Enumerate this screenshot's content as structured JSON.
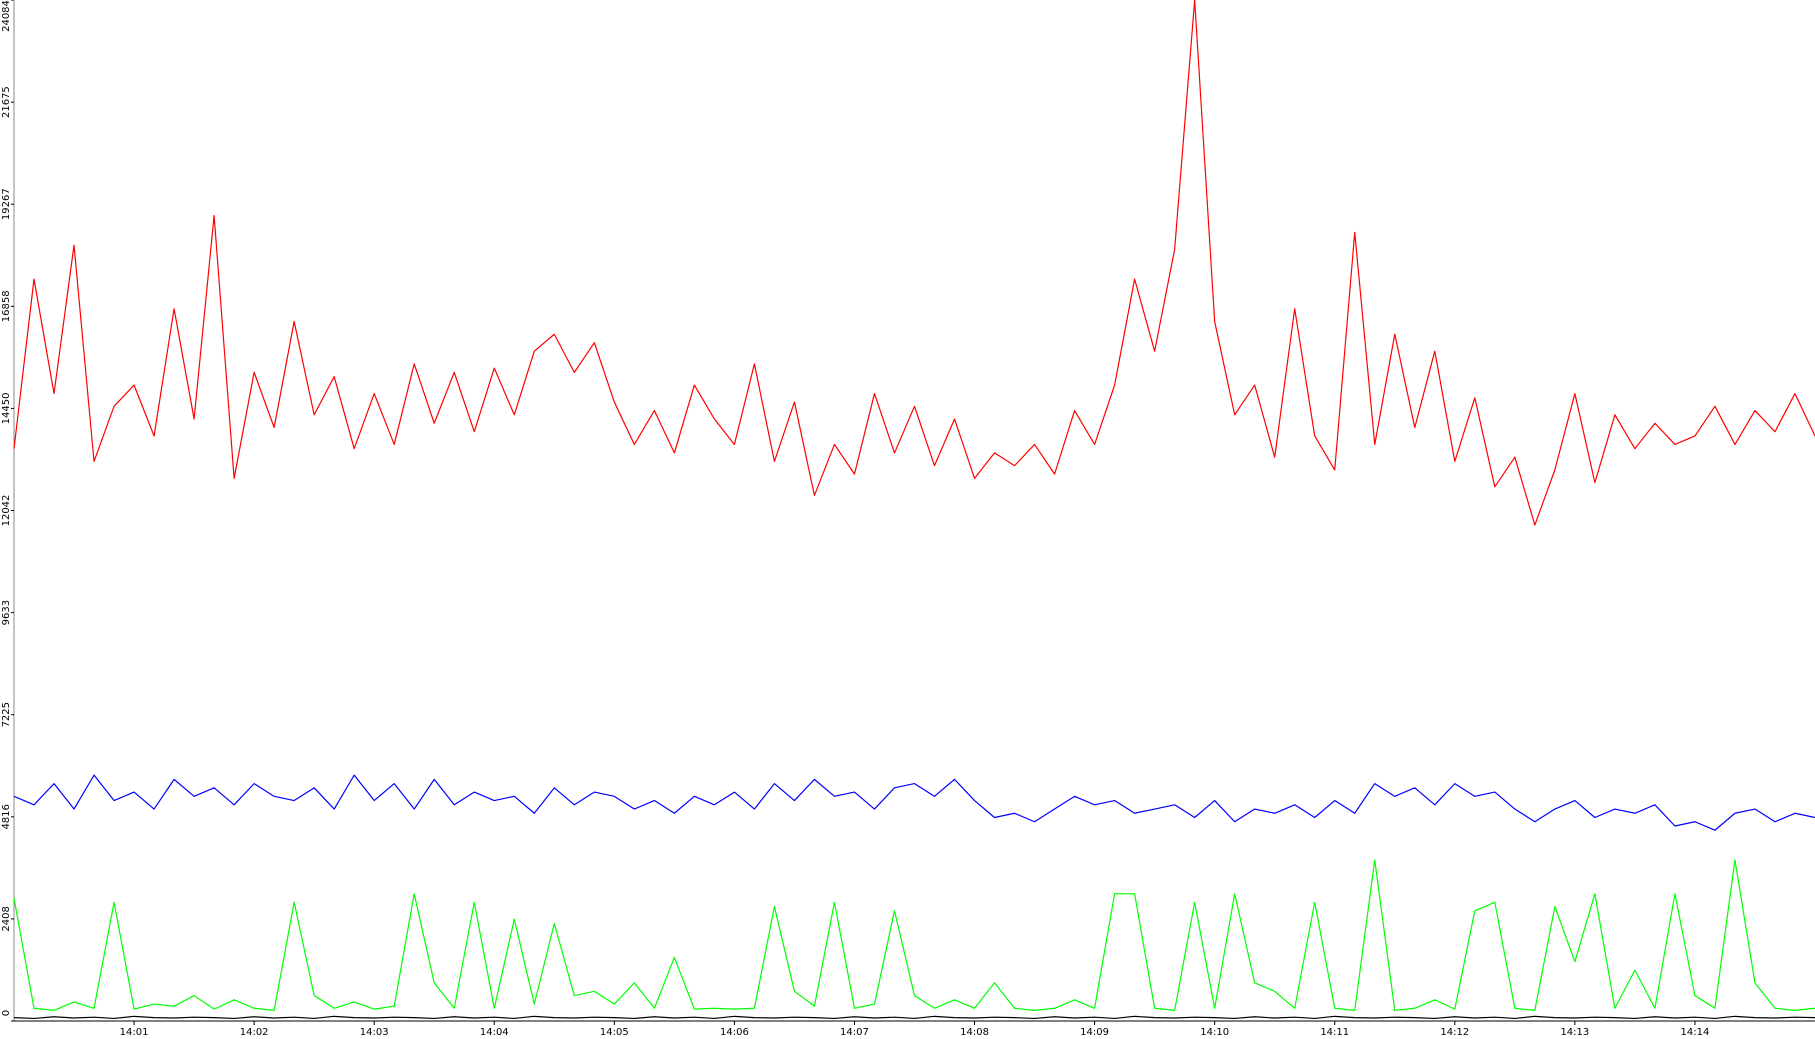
{
  "chart_data": {
    "type": "line",
    "categories": [
      null,
      null,
      null,
      null,
      null,
      null,
      "14:01",
      null,
      null,
      null,
      null,
      null,
      "14:02",
      null,
      null,
      null,
      null,
      null,
      "14:03",
      null,
      null,
      null,
      null,
      null,
      "14:04",
      null,
      null,
      null,
      null,
      null,
      "14:05",
      null,
      null,
      null,
      null,
      null,
      "14:06",
      null,
      null,
      null,
      null,
      null,
      "14:07",
      null,
      null,
      null,
      null,
      null,
      "14:08",
      null,
      null,
      null,
      null,
      null,
      "14:09",
      null,
      null,
      null,
      null,
      null,
      "14:10",
      null,
      null,
      null,
      null,
      null,
      "14:11",
      null,
      null,
      null,
      null,
      null,
      "14:12",
      null,
      null,
      null,
      null,
      null,
      "14:13",
      null,
      null,
      null,
      null,
      null,
      "14:14",
      null,
      null,
      null,
      null,
      null,
      null
    ],
    "series": [
      {
        "color": "#ff0000",
        "values": [
          13500,
          17500,
          14800,
          18300,
          13200,
          14500,
          15000,
          13800,
          16800,
          14200,
          19000,
          12800,
          15300,
          14000,
          16500,
          14300,
          15200,
          13500,
          14800,
          13600,
          15500,
          14100,
          15300,
          13900,
          15400,
          14300,
          15800,
          16200,
          15300,
          16000,
          14600,
          13600,
          14400,
          13400,
          15000,
          14200,
          13600,
          15500,
          13200,
          14600,
          12400,
          13600,
          12900,
          14800,
          13400,
          14500,
          13100,
          14200,
          12800,
          13400,
          13100,
          13600,
          12900,
          14400,
          13600,
          15000,
          17500,
          15800,
          18200,
          24084,
          16500,
          14300,
          15000,
          13300,
          16800,
          13800,
          13000,
          18600,
          13600,
          16200,
          14000,
          15800,
          13200,
          14700,
          12600,
          13300,
          11700,
          13000,
          14800,
          12700,
          14300,
          13500,
          14100,
          13600,
          13800,
          14500,
          13600,
          14400,
          13900,
          14800,
          13800
        ]
      },
      {
        "color": "#0000ff",
        "values": [
          5300,
          5100,
          5600,
          5000,
          5800,
          5200,
          5400,
          5000,
          5700,
          5300,
          5500,
          5100,
          5600,
          5300,
          5200,
          5500,
          5000,
          5800,
          5200,
          5600,
          5000,
          5700,
          5100,
          5400,
          5200,
          5300,
          4900,
          5500,
          5100,
          5400,
          5300,
          5000,
          5200,
          4900,
          5300,
          5100,
          5400,
          5000,
          5600,
          5200,
          5700,
          5300,
          5400,
          5000,
          5500,
          5600,
          5300,
          5700,
          5200,
          4800,
          4900,
          4700,
          5000,
          5300,
          5100,
          5200,
          4900,
          5000,
          5100,
          4800,
          5200,
          4700,
          5000,
          4900,
          5100,
          4800,
          5200,
          4900,
          5600,
          5300,
          5500,
          5100,
          5600,
          5300,
          5400,
          5000,
          4700,
          5000,
          5200,
          4800,
          5000,
          4900,
          5100,
          4600,
          4700,
          4500,
          4900,
          5000,
          4700,
          4900,
          4800
        ]
      },
      {
        "color": "#00ff00",
        "values": [
          2900,
          300,
          250,
          450,
          300,
          2800,
          280,
          400,
          350,
          600,
          280,
          500,
          300,
          250,
          2800,
          600,
          300,
          450,
          280,
          350,
          3000,
          900,
          300,
          2800,
          300,
          2400,
          400,
          2300,
          600,
          700,
          400,
          900,
          300,
          1500,
          280,
          300,
          280,
          300,
          2700,
          700,
          350,
          2800,
          300,
          400,
          2600,
          600,
          300,
          500,
          300,
          900,
          300,
          250,
          300,
          500,
          300,
          3000,
          3000,
          300,
          250,
          2800,
          300,
          3000,
          900,
          700,
          300,
          2800,
          300,
          250,
          3800,
          250,
          300,
          500,
          280,
          2600,
          2800,
          300,
          250,
          2700,
          1400,
          3000,
          300,
          1200,
          300,
          3000,
          600,
          300,
          3800,
          900,
          300,
          250,
          300
        ]
      },
      {
        "color": "#000000",
        "values": [
          80,
          60,
          100,
          70,
          90,
          60,
          110,
          80,
          70,
          90,
          80,
          60,
          100,
          70,
          90,
          60,
          110,
          80,
          70,
          90,
          80,
          60,
          100,
          70,
          90,
          60,
          110,
          80,
          70,
          90,
          80,
          60,
          100,
          70,
          90,
          60,
          110,
          80,
          70,
          90,
          80,
          60,
          100,
          70,
          90,
          60,
          110,
          80,
          70,
          90,
          80,
          60,
          100,
          70,
          90,
          60,
          110,
          80,
          70,
          90,
          80,
          60,
          100,
          70,
          90,
          60,
          110,
          80,
          70,
          90,
          80,
          60,
          100,
          70,
          90,
          60,
          110,
          80,
          70,
          90,
          80,
          60,
          100,
          70,
          90,
          60,
          110,
          80,
          70,
          90,
          80
        ]
      }
    ],
    "ylim": [
      0,
      24084
    ],
    "yticks": [
      0,
      2408,
      4816,
      7225,
      9633,
      12042,
      14450,
      16858,
      19267,
      21675,
      24084
    ],
    "grid": false
  }
}
